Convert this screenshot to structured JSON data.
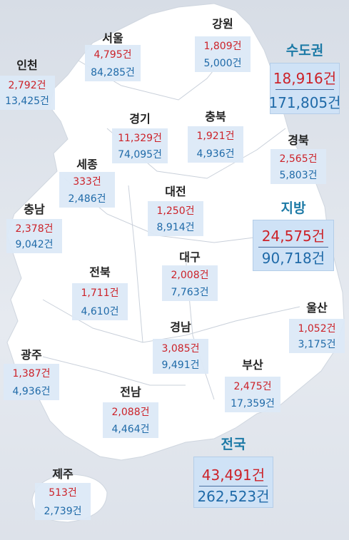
{
  "regions": [
    {
      "name": "강원",
      "count": "1,809건",
      "amount": "5,000건"
    },
    {
      "name": "서울",
      "count": "4,795건",
      "amount": "84,285건"
    },
    {
      "name": "인천",
      "count": "2,792건",
      "amount": "13,425건"
    },
    {
      "name": "경기",
      "count": "11,329건",
      "amount": "74,095건"
    },
    {
      "name": "충북",
      "count": "1,921건",
      "amount": "4,936건"
    },
    {
      "name": "경북",
      "count": "2,565건",
      "amount": "5,803건"
    },
    {
      "name": "세종",
      "count": "333건",
      "amount": "2,486건"
    },
    {
      "name": "대전",
      "count": "1,250건",
      "amount": "8,914건"
    },
    {
      "name": "충남",
      "count": "2,378건",
      "amount": "9,042건"
    },
    {
      "name": "대구",
      "count": "2,008건",
      "amount": "7,763건"
    },
    {
      "name": "전북",
      "count": "1,711건",
      "amount": "4,610건"
    },
    {
      "name": "울산",
      "count": "1,052건",
      "amount": "3,175건"
    },
    {
      "name": "경남",
      "count": "3,085건",
      "amount": "9,491건"
    },
    {
      "name": "광주",
      "count": "1,387건",
      "amount": "4,936건"
    },
    {
      "name": "부산",
      "count": "2,475건",
      "amount": "17,359건"
    },
    {
      "name": "전남",
      "count": "2,088건",
      "amount": "4,464건"
    },
    {
      "name": "제주",
      "count": "513건",
      "amount": "2,739건"
    }
  ],
  "summary": [
    {
      "title": "수도권",
      "count": "18,916건",
      "amount": "171,805건"
    },
    {
      "title": "지방",
      "count": "24,575건",
      "amount": "90,718건"
    },
    {
      "title": "전국",
      "count": "43,491건",
      "amount": "262,523건"
    }
  ]
}
